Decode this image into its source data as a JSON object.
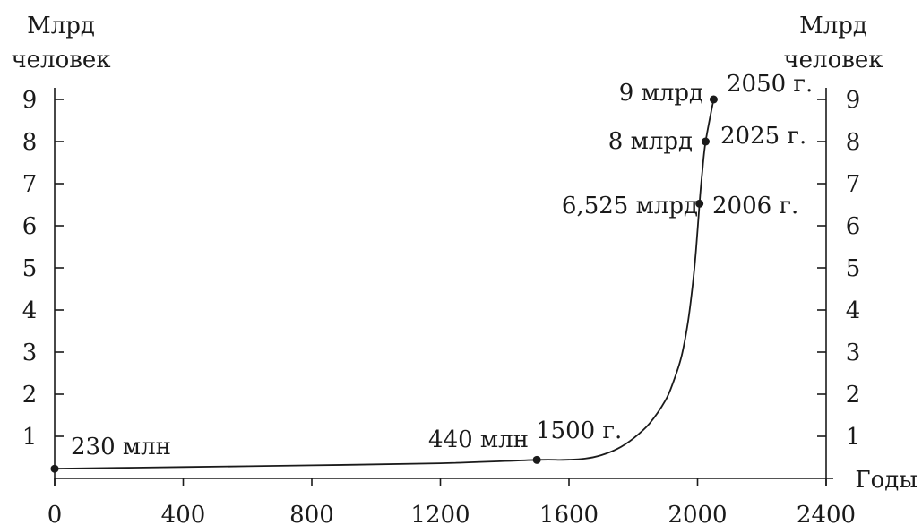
{
  "chart_data": {
    "type": "line",
    "title": "",
    "xlabel": "Годы",
    "ylabel_left": [
      "Млрд",
      "человек"
    ],
    "ylabel_right": [
      "Млрд",
      "человек"
    ],
    "xlim": [
      0,
      2400
    ],
    "ylim": [
      0,
      9
    ],
    "xticks": [
      0,
      400,
      800,
      1200,
      1600,
      2000,
      2400
    ],
    "xtick_labels": [
      "0",
      "400",
      "800",
      "1200",
      "1600",
      "2000",
      "2400"
    ],
    "yticks": [
      1,
      2,
      3,
      4,
      5,
      6,
      7,
      8,
      9
    ],
    "ytick_labels": [
      "1",
      "2",
      "3",
      "4",
      "5",
      "6",
      "7",
      "8",
      "9"
    ],
    "grid": false,
    "series": [
      {
        "x": [
          0,
          400,
          800,
          1200,
          1500,
          1580,
          1650,
          1700,
          1750,
          1800,
          1850,
          1900,
          1925,
          1950,
          1970,
          1985,
          1995,
          2006,
          2015,
          2025,
          2050
        ],
        "y": [
          0.23,
          0.27,
          0.31,
          0.36,
          0.44,
          0.44,
          0.47,
          0.55,
          0.7,
          0.95,
          1.3,
          1.85,
          2.3,
          2.9,
          3.7,
          4.6,
          5.4,
          6.525,
          7.3,
          8.0,
          9.0
        ]
      }
    ],
    "annotations": [
      {
        "x": 0,
        "y": 0.23,
        "value_text": "230 млн",
        "year_text": ""
      },
      {
        "x": 1500,
        "y": 0.44,
        "value_text": "440 млн",
        "year_text": "1500 г."
      },
      {
        "x": 2006,
        "y": 6.525,
        "value_text": "6,525 млрд",
        "year_text": "2006 г."
      },
      {
        "x": 2025,
        "y": 8.0,
        "value_text": "8 млрд",
        "year_text": "2025 г."
      },
      {
        "x": 2050,
        "y": 9.0,
        "value_text": "9 млрд",
        "year_text": "2050 г."
      }
    ],
    "colors": {
      "ink": "#1a1a1a",
      "background": "#ffffff"
    }
  }
}
